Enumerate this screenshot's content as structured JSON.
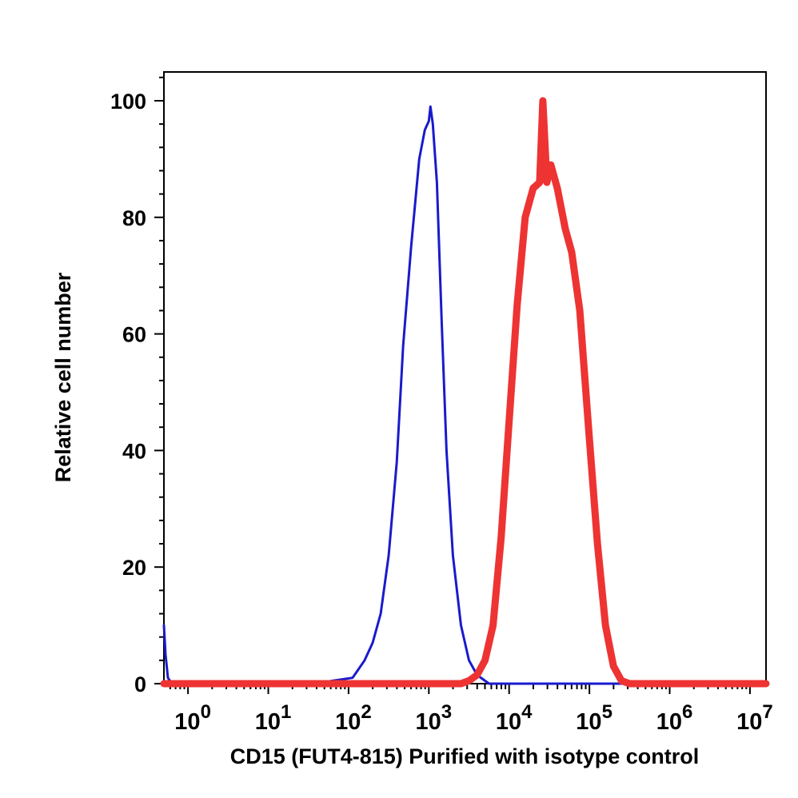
{
  "chart_data": {
    "type": "line",
    "title": "",
    "xlabel": "CD15 (FUT4-815) Purified with isotype control",
    "ylabel": "Relative cell number",
    "xscale": "log",
    "xlim_log10": [
      -0.3,
      7.2
    ],
    "ylim": [
      0,
      105
    ],
    "grid": false,
    "legend": "none",
    "x_ticks": [
      {
        "base": "10",
        "exp": "0",
        "log10": 0
      },
      {
        "base": "10",
        "exp": "1",
        "log10": 1
      },
      {
        "base": "10",
        "exp": "2",
        "log10": 2
      },
      {
        "base": "10",
        "exp": "3",
        "log10": 3
      },
      {
        "base": "10",
        "exp": "4",
        "log10": 4
      },
      {
        "base": "10",
        "exp": "5",
        "log10": 5
      },
      {
        "base": "10",
        "exp": "6",
        "log10": 6
      },
      {
        "base": "10",
        "exp": "7",
        "log10": 7
      }
    ],
    "y_ticks": [
      "0",
      "20",
      "40",
      "60",
      "80",
      "100"
    ],
    "y_tick_values": [
      0,
      20,
      40,
      60,
      80,
      100
    ],
    "series": [
      {
        "color": "#1a1acc",
        "points_log10x_y": [
          [
            -0.3,
            10
          ],
          [
            -0.28,
            5
          ],
          [
            -0.25,
            1
          ],
          [
            -0.2,
            0
          ],
          [
            0.0,
            0
          ],
          [
            1.6,
            0
          ],
          [
            1.8,
            0.5
          ],
          [
            2.05,
            1
          ],
          [
            2.1,
            2
          ],
          [
            2.2,
            4
          ],
          [
            2.3,
            7
          ],
          [
            2.4,
            12
          ],
          [
            2.5,
            22
          ],
          [
            2.6,
            38
          ],
          [
            2.68,
            58
          ],
          [
            2.78,
            75
          ],
          [
            2.88,
            90
          ],
          [
            2.95,
            95
          ],
          [
            3.0,
            96.5
          ],
          [
            3.02,
            99
          ],
          [
            3.05,
            96
          ],
          [
            3.1,
            86
          ],
          [
            3.16,
            62
          ],
          [
            3.22,
            40
          ],
          [
            3.3,
            22
          ],
          [
            3.4,
            10
          ],
          [
            3.5,
            4
          ],
          [
            3.6,
            1.5
          ],
          [
            3.75,
            0
          ],
          [
            7.2,
            0
          ]
        ]
      },
      {
        "color": "#ee3333",
        "points_log10x_y": [
          [
            -0.3,
            0
          ],
          [
            3.4,
            0
          ],
          [
            3.5,
            0.5
          ],
          [
            3.6,
            1.5
          ],
          [
            3.7,
            4
          ],
          [
            3.8,
            10
          ],
          [
            3.9,
            25
          ],
          [
            4.0,
            45
          ],
          [
            4.1,
            65
          ],
          [
            4.2,
            80
          ],
          [
            4.3,
            85
          ],
          [
            4.38,
            86
          ],
          [
            4.42,
            100
          ],
          [
            4.47,
            86
          ],
          [
            4.52,
            89
          ],
          [
            4.6,
            85
          ],
          [
            4.7,
            78
          ],
          [
            4.78,
            74
          ],
          [
            4.88,
            64
          ],
          [
            5.0,
            42
          ],
          [
            5.1,
            24
          ],
          [
            5.2,
            10
          ],
          [
            5.3,
            3
          ],
          [
            5.4,
            0.5
          ],
          [
            5.5,
            0
          ],
          [
            7.2,
            0
          ]
        ]
      }
    ]
  }
}
